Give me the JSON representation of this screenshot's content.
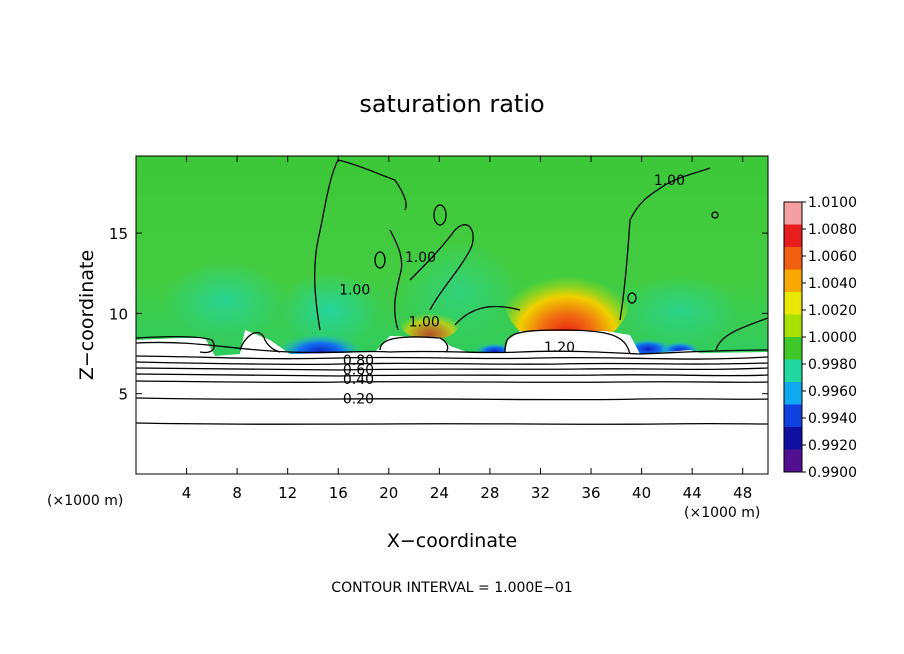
{
  "chart_data": {
    "type": "heatmap",
    "title": "saturation ratio",
    "xlabel": "X−coordinate",
    "ylabel": "Z−coordinate",
    "x_unit_left": "(×1000 m)",
    "x_unit_right": "(×1000 m)",
    "xlim": [
      0,
      50
    ],
    "ylim": [
      0,
      19.8
    ],
    "x_ticks": [
      4,
      8,
      12,
      16,
      20,
      24,
      28,
      32,
      36,
      40,
      44,
      48
    ],
    "y_ticks": [
      5,
      10,
      15
    ],
    "footer": "CONTOUR INTERVAL = 1.000E−01",
    "colorbar": {
      "labels": [
        "1.0100",
        "1.0080",
        "1.0060",
        "1.0040",
        "1.0020",
        "1.0000",
        "0.9980",
        "0.9960",
        "0.9940",
        "0.9920",
        "0.9900"
      ],
      "colors": [
        "#f4a0a0",
        "#e81e1e",
        "#f06010",
        "#f8a800",
        "#e8e800",
        "#a8e000",
        "#40c828",
        "#20d8a0",
        "#10a8f0",
        "#1040e0",
        "#1010a0",
        "#501090"
      ]
    },
    "contour_labels": [
      {
        "text": "1.20",
        "x": 33.5,
        "y": 7.9
      },
      {
        "text": "1.00",
        "x": 22.8,
        "y": 9.5
      },
      {
        "text": "1.00",
        "x": 17.3,
        "y": 11.5
      },
      {
        "text": "1.00",
        "x": 22.5,
        "y": 13.5
      },
      {
        "text": "1.00",
        "x": 42.2,
        "y": 18.3
      },
      {
        "text": "0.80",
        "x": 17.6,
        "y": 7.1
      },
      {
        "text": "0.60",
        "x": 17.6,
        "y": 6.5
      },
      {
        "text": "0.40",
        "x": 17.6,
        "y": 5.9
      },
      {
        "text": "0.20",
        "x": 17.6,
        "y": 4.7
      }
    ]
  }
}
